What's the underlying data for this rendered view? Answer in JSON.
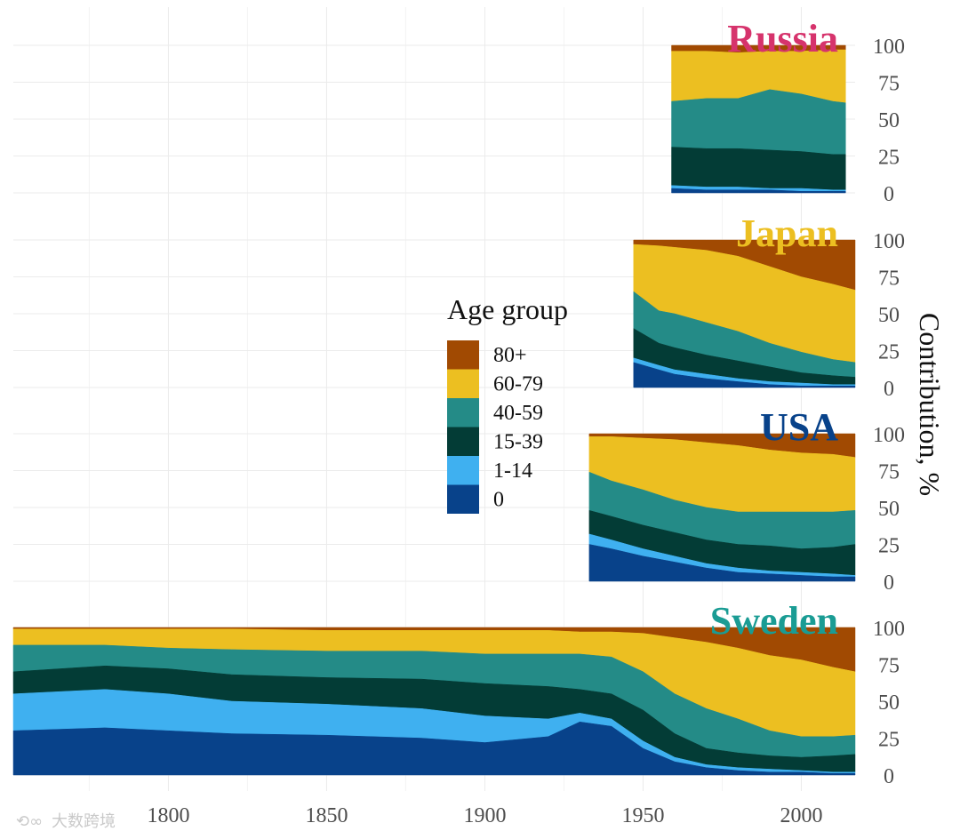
{
  "colors": {
    "age_80p": "#a14a02",
    "age_60_79": "#ecbf21",
    "age_40_59": "#248b87",
    "age_15_39": "#033c36",
    "age_1_14": "#3fb0f0",
    "age_0": "#08428a",
    "grid": "#ebebeb"
  },
  "watermark": "大数跨境",
  "chart_data": {
    "type": "area",
    "subtype": "stacked-100",
    "xlabel": "",
    "ylabel": "Contribution, %",
    "x_ticks": [
      "1800",
      "1850",
      "1900",
      "1950",
      "2000"
    ],
    "y_ticks": [
      "0",
      "25",
      "50",
      "75",
      "100"
    ],
    "xlim": [
      1751,
      2017
    ],
    "ylim": [
      0,
      100
    ],
    "legend": {
      "title": "Age group",
      "entries": [
        {
          "label": "80+",
          "color": "#a14a02"
        },
        {
          "label": "60-79",
          "color": "#ecbf21"
        },
        {
          "label": "40-59",
          "color": "#248b87"
        },
        {
          "label": "15-39",
          "color": "#033c36"
        },
        {
          "label": "1-14",
          "color": "#3fb0f0"
        },
        {
          "label": "0",
          "color": "#08428a"
        }
      ]
    },
    "series_order": [
      "0",
      "1-14",
      "15-39",
      "40-59",
      "60-79",
      "80+"
    ],
    "panels": [
      {
        "title": "Russia",
        "title_color": "#d6336c",
        "x": [
          1959,
          1970,
          1980,
          1990,
          2000,
          2010,
          2014
        ],
        "cumulative_upper": [
          [
            3,
            2,
            2,
            2,
            1,
            1,
            1
          ],
          [
            5,
            4,
            4,
            3,
            3,
            2,
            2
          ],
          [
            31,
            30,
            30,
            29,
            28,
            26,
            26
          ],
          [
            62,
            64,
            64,
            70,
            67,
            62,
            61
          ],
          [
            96,
            96,
            95,
            96,
            96,
            97,
            97
          ],
          [
            100,
            100,
            100,
            100,
            100,
            100,
            100
          ]
        ]
      },
      {
        "title": "Japan",
        "title_color": "#ecbf21",
        "x": [
          1947,
          1955,
          1960,
          1970,
          1980,
          1990,
          2000,
          2010,
          2017
        ],
        "cumulative_upper": [
          [
            17,
            12,
            9,
            6,
            4,
            2,
            1,
            1,
            1
          ],
          [
            20,
            15,
            12,
            9,
            6,
            4,
            3,
            2,
            2
          ],
          [
            40,
            30,
            27,
            22,
            18,
            14,
            10,
            8,
            7
          ],
          [
            65,
            52,
            50,
            44,
            38,
            30,
            24,
            19,
            17
          ],
          [
            97,
            96,
            95,
            93,
            89,
            82,
            75,
            70,
            66
          ],
          [
            100,
            100,
            100,
            100,
            100,
            100,
            100,
            100,
            100
          ]
        ]
      },
      {
        "title": "USA",
        "title_color": "#08428a",
        "x": [
          1933,
          1940,
          1950,
          1960,
          1970,
          1980,
          1990,
          2000,
          2010,
          2017
        ],
        "cumulative_upper": [
          [
            25,
            22,
            17,
            13,
            9,
            6,
            5,
            4,
            3,
            3
          ],
          [
            32,
            28,
            22,
            17,
            12,
            9,
            7,
            6,
            5,
            4
          ],
          [
            48,
            44,
            38,
            33,
            28,
            25,
            24,
            22,
            23,
            25
          ],
          [
            74,
            68,
            62,
            55,
            50,
            47,
            47,
            47,
            47,
            48
          ],
          [
            98,
            98,
            97,
            96,
            94,
            92,
            89,
            87,
            86,
            84
          ],
          [
            100,
            100,
            100,
            100,
            100,
            100,
            100,
            100,
            100,
            100
          ]
        ]
      },
      {
        "title": "Sweden",
        "title_color": "#1a9c94",
        "x": [
          1751,
          1780,
          1800,
          1820,
          1850,
          1880,
          1900,
          1920,
          1930,
          1940,
          1950,
          1960,
          1970,
          1980,
          1990,
          2000,
          2010,
          2017
        ],
        "cumulative_upper": [
          [
            30,
            32,
            30,
            28,
            27,
            25,
            22,
            26,
            36,
            33,
            18,
            9,
            5,
            3,
            2,
            2,
            1,
            1
          ],
          [
            55,
            58,
            55,
            50,
            48,
            45,
            40,
            38,
            42,
            38,
            23,
            12,
            7,
            5,
            4,
            3,
            2,
            2
          ],
          [
            70,
            74,
            72,
            68,
            66,
            65,
            62,
            60,
            58,
            55,
            44,
            28,
            18,
            15,
            13,
            12,
            13,
            14
          ],
          [
            88,
            88,
            86,
            85,
            84,
            84,
            82,
            82,
            82,
            80,
            70,
            55,
            45,
            38,
            30,
            26,
            26,
            27
          ],
          [
            99,
            99,
            99,
            99,
            98,
            98,
            98,
            98,
            97,
            97,
            96,
            93,
            90,
            86,
            81,
            78,
            73,
            70
          ],
          [
            100,
            100,
            100,
            100,
            100,
            100,
            100,
            100,
            100,
            100,
            100,
            100,
            100,
            100,
            100,
            100,
            100,
            100
          ]
        ]
      }
    ]
  }
}
